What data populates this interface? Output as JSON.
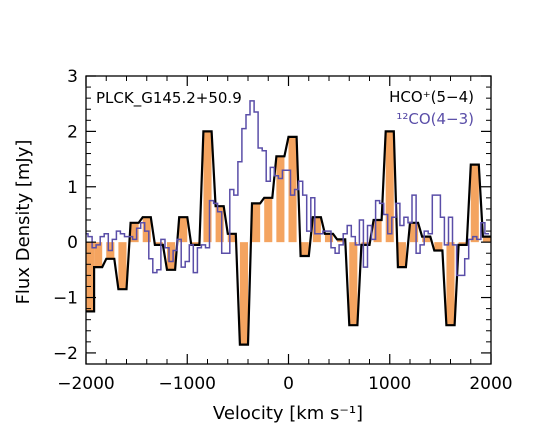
{
  "chart_data": {
    "type": "line",
    "title": "",
    "annotation": "PLCK_G145.2+50.9",
    "xlabel": "Velocity [km s⁻¹]",
    "ylabel": "Flux Density [mJy]",
    "xlim": [
      -2000,
      2000
    ],
    "ylim": [
      -2.2,
      3.0
    ],
    "xticks": [
      -2000,
      -1000,
      0,
      1000,
      2000
    ],
    "xtick_labels": [
      "−2000",
      "−1000",
      "0",
      "1000",
      "2000"
    ],
    "yticks": [
      -2,
      -1,
      0,
      1,
      2,
      3
    ],
    "ytick_labels": [
      "−2",
      "−1",
      "0",
      "1",
      "2",
      "3"
    ],
    "legend_position": "top-right",
    "grid": false,
    "series": [
      {
        "name": "HCO⁺(5−4)",
        "color": "#000000",
        "fill": "#f4a460",
        "style": "filled-histogram",
        "x": [
          -1960,
          -1880,
          -1760,
          -1640,
          -1520,
          -1400,
          -1280,
          -1160,
          -1040,
          -920,
          -800,
          -680,
          -560,
          -440,
          -320,
          -200,
          -80,
          40,
          160,
          280,
          400,
          520,
          640,
          760,
          880,
          1000,
          1120,
          1240,
          1360,
          1480,
          1600,
          1720,
          1840,
          1960
        ],
        "y": [
          -1.25,
          -0.45,
          -0.3,
          -0.85,
          0.35,
          0.45,
          -0.05,
          -0.5,
          0.45,
          -0.05,
          2.0,
          0.65,
          0.15,
          -1.85,
          0.7,
          0.8,
          1.55,
          1.9,
          -0.25,
          0.45,
          0.15,
          0.05,
          -1.5,
          -0.05,
          0.4,
          2.0,
          -0.45,
          0.35,
          0.1,
          -0.15,
          -1.5,
          -0.05,
          1.4,
          0.1
        ]
      },
      {
        "name": "¹²CO(4−3)",
        "color": "#5a4ea8",
        "style": "histogram",
        "x": [
          -2000,
          -1960,
          -1920,
          -1880,
          -1840,
          -1800,
          -1760,
          -1720,
          -1680,
          -1640,
          -1600,
          -1560,
          -1520,
          -1480,
          -1440,
          -1400,
          -1360,
          -1320,
          -1280,
          -1240,
          -1200,
          -1160,
          -1120,
          -1080,
          -1040,
          -1000,
          -960,
          -920,
          -880,
          -840,
          -800,
          -760,
          -720,
          -680,
          -640,
          -600,
          -560,
          -520,
          -480,
          -440,
          -400,
          -360,
          -320,
          -280,
          -240,
          -200,
          -160,
          -120,
          -80,
          -40,
          0,
          40,
          80,
          120,
          160,
          200,
          240,
          280,
          320,
          360,
          400,
          440,
          480,
          520,
          560,
          600,
          640,
          680,
          720,
          760,
          800,
          840,
          880,
          920,
          960,
          1000,
          1040,
          1080,
          1120,
          1160,
          1200,
          1240,
          1280,
          1320,
          1360,
          1400,
          1440,
          1480,
          1520,
          1560,
          1600,
          1640,
          1680,
          1720,
          1760,
          1800,
          1840,
          1880,
          1920,
          1960
        ],
        "y": [
          0.15,
          0.1,
          -0.1,
          -0.05,
          0.1,
          0.15,
          -0.15,
          0.05,
          0.2,
          0.15,
          0.1,
          0.1,
          0.05,
          0.25,
          0.35,
          0.2,
          -0.3,
          -0.55,
          -0.5,
          0.05,
          -0.1,
          -0.35,
          -0.15,
          0.05,
          -0.45,
          -0.35,
          -0.05,
          -0.55,
          -0.1,
          -0.05,
          -0.1,
          0.75,
          0.7,
          0.55,
          -0.2,
          -0.2,
          0.95,
          0.85,
          1.45,
          2.05,
          2.3,
          2.55,
          2.35,
          1.7,
          1.65,
          1.1,
          1.35,
          1.2,
          1.15,
          1.3,
          1.3,
          0.85,
          0.95,
          1.1,
          0.85,
          0.2,
          0.8,
          0.15,
          0.15,
          0.2,
          0.2,
          -0.1,
          -0.2,
          -0.05,
          0.15,
          0.3,
          0.1,
          -0.05,
          0.4,
          -0.45,
          0.3,
          0.05,
          0.75,
          0.7,
          0.5,
          0.15,
          0.45,
          0.7,
          0.3,
          0.45,
          0.35,
          0.85,
          -0.2,
          -0.05,
          0.2,
          0.15,
          0.85,
          0.85,
          0.45,
          -0.05,
          0.45,
          -0.05,
          -0.6,
          -0.6,
          -0.3,
          0.05,
          0.1,
          0.05,
          0.35,
          0.15
        ]
      }
    ]
  }
}
